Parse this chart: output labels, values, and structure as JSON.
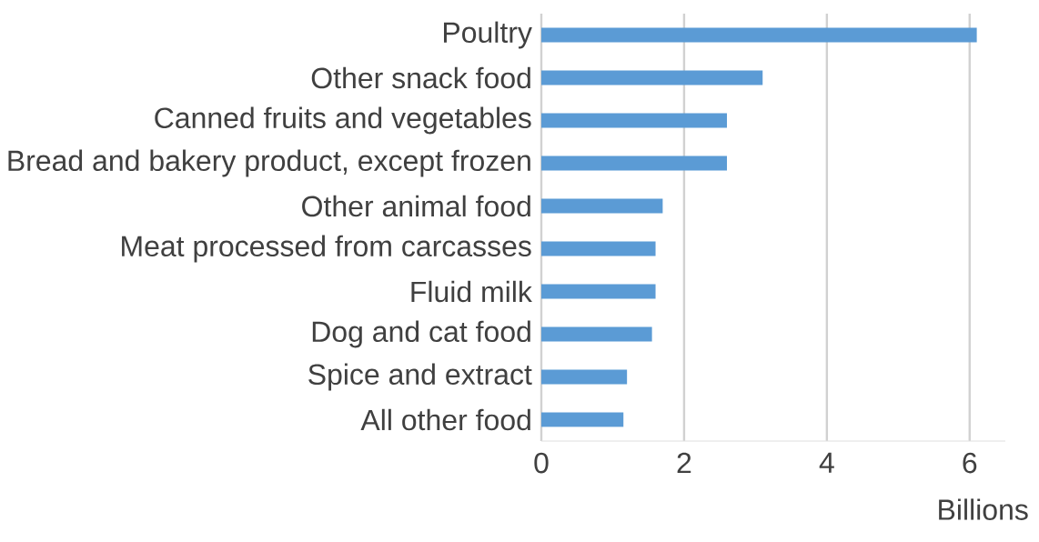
{
  "chart_data": {
    "type": "bar",
    "orientation": "horizontal",
    "xlabel": "Billions",
    "categories": [
      "Poultry",
      "Other snack food",
      "Canned fruits and vegetables",
      "Bread and bakery product, except frozen",
      "Other animal food",
      "Meat processed from carcasses",
      "Fluid milk",
      "Dog and cat food",
      "Spice and extract",
      "All other food"
    ],
    "values": [
      6.1,
      3.1,
      2.6,
      2.6,
      1.7,
      1.6,
      1.6,
      1.55,
      1.2,
      1.15
    ],
    "color": "#5b9bd5",
    "xlim": [
      0,
      6.5
    ],
    "xticks": [
      0,
      2,
      4,
      6
    ],
    "grid": "x"
  }
}
